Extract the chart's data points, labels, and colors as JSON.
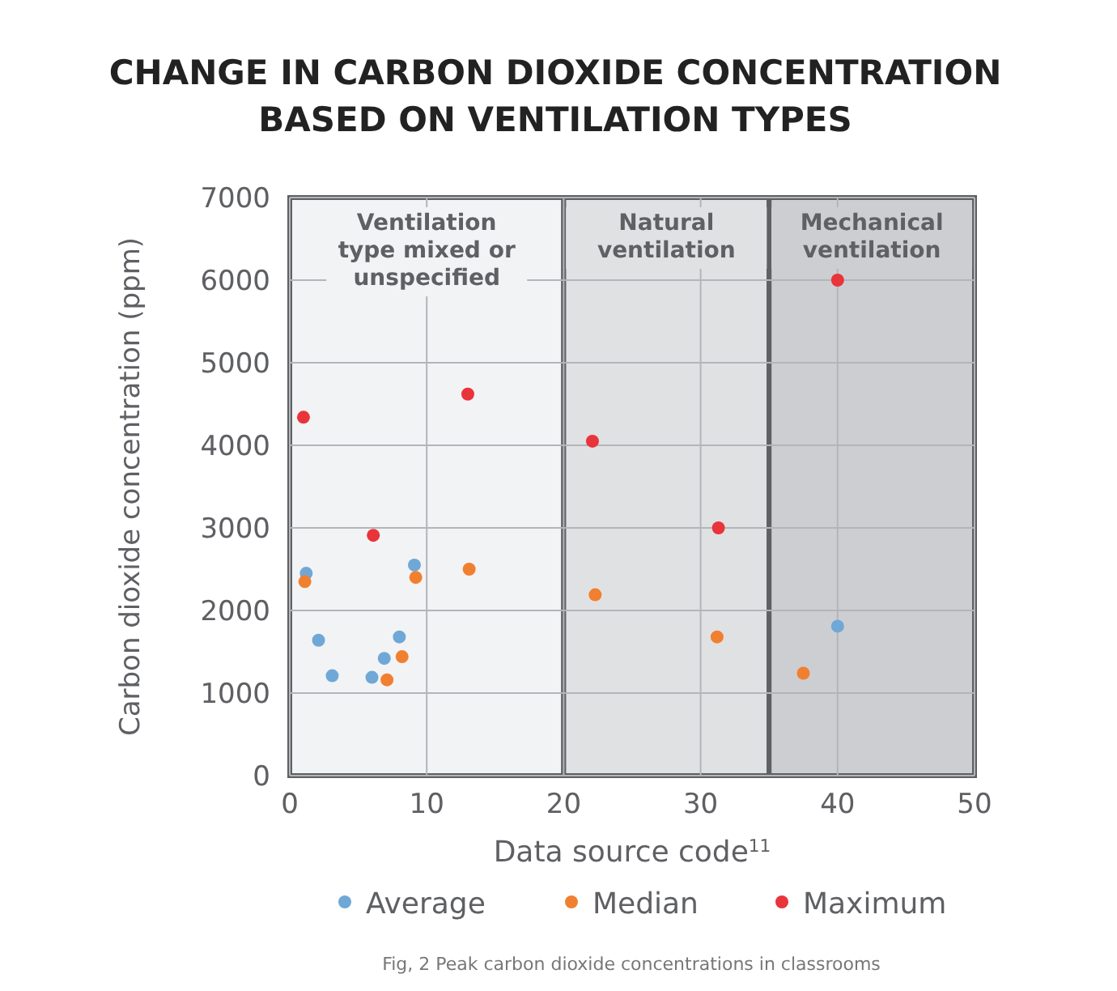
{
  "chart_data": {
    "type": "scatter",
    "title": "CHANGE IN CARBON DIOXIDE CONCENTRATION\nBASED ON VENTILATION TYPES",
    "xlabel": "Data source code$^{11}$",
    "ylabel": "Carbon dioxide concentration (ppm)",
    "xlim": [
      0,
      50
    ],
    "xticks": [
      0,
      10,
      20,
      30,
      40,
      50
    ],
    "ylim": [
      0,
      7000
    ],
    "yticks": [
      0,
      1000,
      2000,
      3000,
      4000,
      5000,
      6000,
      7000
    ],
    "grid": true,
    "legend": "bottom",
    "marker": "circle",
    "bands": [
      {
        "axis": "x",
        "from": 0,
        "to": 20,
        "label": "Ventilation\ntype mixed or\nunspecified",
        "color": "#f2f3f5"
      },
      {
        "axis": "x",
        "from": 20,
        "to": 35,
        "label": "Natural\nventilation",
        "color": "#e0e1e3"
      },
      {
        "axis": "x",
        "from": 35,
        "to": 50,
        "label": "Mechanical\nventilation",
        "color": "#cdced2"
      }
    ],
    "series": [
      {
        "name": "Average",
        "color": "#6fa8d6",
        "x": [
          1.2,
          9.1,
          2.1,
          8.0,
          6.9,
          3.1,
          6.0,
          40
        ],
        "values": [
          2450,
          2550,
          1640,
          1680,
          1420,
          1210,
          1190,
          1810
        ]
      },
      {
        "name": "Median",
        "color": "#f08030",
        "x": [
          1.1,
          9.2,
          13.1,
          8.2,
          7.1,
          22.3,
          31.2,
          37.5
        ],
        "values": [
          2350,
          2400,
          2500,
          1440,
          1160,
          2190,
          1680,
          1240
        ]
      },
      {
        "name": "Maximum",
        "color": "#e8343a",
        "x": [
          1.0,
          13.0,
          6.1,
          22.1,
          31.3,
          40
        ],
        "values": [
          4340,
          4620,
          2910,
          4050,
          3000,
          6000
        ]
      }
    ],
    "annotations": [
      "Fig, 2 Peak carbon dioxide concentrations in classrooms"
    ]
  }
}
